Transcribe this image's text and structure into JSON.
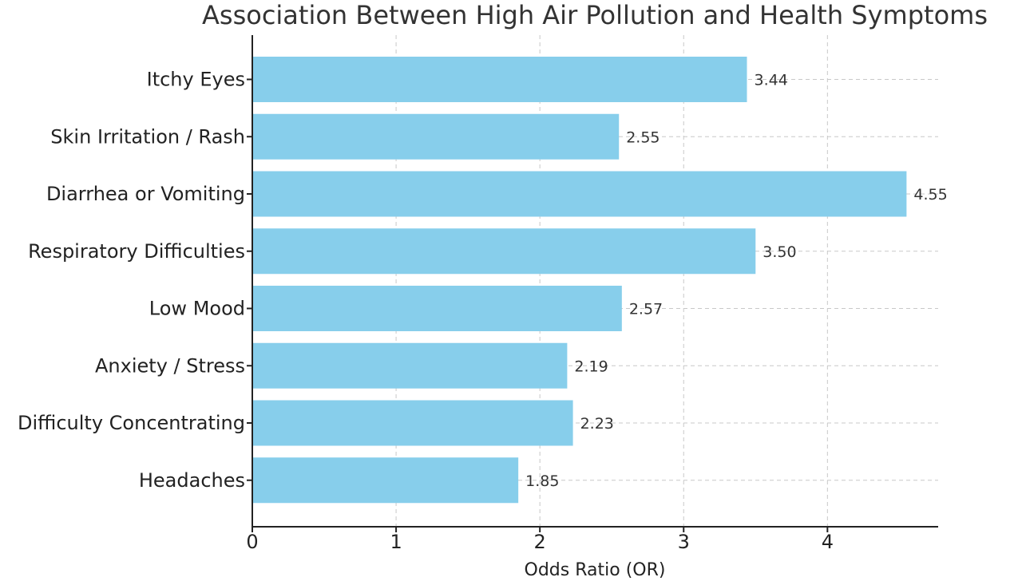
{
  "chart_data": {
    "type": "bar",
    "orientation": "horizontal",
    "title": "Association Between High Air Pollution and Health Symptoms",
    "xlabel": "Odds Ratio (OR)",
    "ylabel": "",
    "categories": [
      "Itchy Eyes",
      "Skin Irritation / Rash",
      "Diarrhea or Vomiting",
      "Respiratory Difficulties",
      "Low Mood",
      "Anxiety / Stress",
      "Difficulty Concentrating",
      "Headaches"
    ],
    "values": [
      3.44,
      2.55,
      4.55,
      3.5,
      2.57,
      2.19,
      2.23,
      1.85
    ],
    "value_labels": [
      "3.44",
      "2.55",
      "4.55",
      "3.50",
      "2.57",
      "2.19",
      "2.23",
      "1.85"
    ],
    "xlim": [
      0,
      4.77
    ],
    "xticks": [
      0,
      1,
      2,
      3,
      4
    ],
    "xtick_labels": [
      "0",
      "1",
      "2",
      "3",
      "4"
    ],
    "grid": true,
    "colors": {
      "bar": "#87CEEB",
      "axis": "#222222",
      "grid": "#c8c8c8"
    }
  }
}
